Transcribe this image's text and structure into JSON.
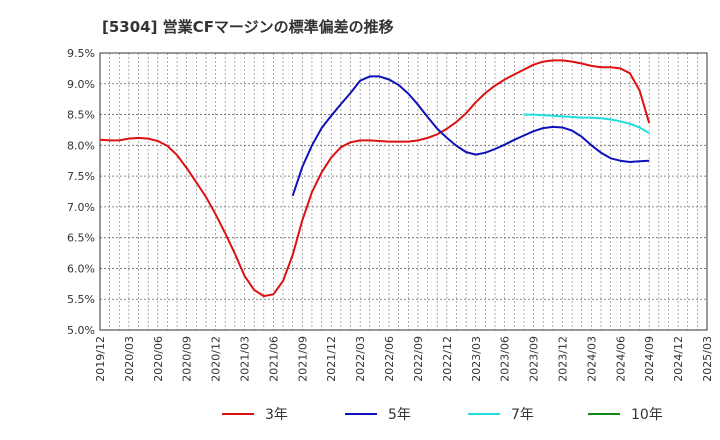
{
  "chart_data": {
    "type": "line",
    "title": "[5304]  営業CFマージンの標準偏差の推移",
    "xlabel": "",
    "ylabel": "",
    "ylim": [
      5.0,
      9.5
    ],
    "yticks": [
      5.0,
      5.5,
      6.0,
      6.5,
      7.0,
      7.5,
      8.0,
      8.5,
      9.0,
      9.5
    ],
    "ytick_labels": [
      "5.0%",
      "5.5%",
      "6.0%",
      "6.5%",
      "7.0%",
      "7.5%",
      "8.0%",
      "8.5%",
      "9.0%",
      "9.5%"
    ],
    "xticks": [
      "2019/12",
      "2020/03",
      "2020/06",
      "2020/09",
      "2020/12",
      "2021/03",
      "2021/06",
      "2021/09",
      "2021/12",
      "2022/03",
      "2022/06",
      "2022/09",
      "2022/12",
      "2023/03",
      "2023/06",
      "2023/09",
      "2023/12",
      "2024/03",
      "2024/06",
      "2024/09",
      "2024/12",
      "2025/03"
    ],
    "grid": true,
    "legend_position": "bottom",
    "series": [
      {
        "name": "3年",
        "color": "#dd1111",
        "x": [
          "2019/12",
          "2020/01",
          "2020/02",
          "2020/03",
          "2020/04",
          "2020/05",
          "2020/06",
          "2020/07",
          "2020/08",
          "2020/09",
          "2020/10",
          "2020/11",
          "2020/12",
          "2021/01",
          "2021/02",
          "2021/03",
          "2021/04",
          "2021/05",
          "2021/06",
          "2021/07",
          "2021/08",
          "2021/09",
          "2021/10",
          "2021/11",
          "2021/12",
          "2022/01",
          "2022/02",
          "2022/03",
          "2022/04",
          "2022/05",
          "2022/06",
          "2022/07",
          "2022/08",
          "2022/09",
          "2022/10",
          "2022/11",
          "2022/12",
          "2023/01",
          "2023/02",
          "2023/03",
          "2023/04",
          "2023/05",
          "2023/06",
          "2023/07",
          "2023/08",
          "2023/09",
          "2023/10",
          "2023/11",
          "2023/12",
          "2024/01",
          "2024/02",
          "2024/03",
          "2024/04",
          "2024/05",
          "2024/06",
          "2024/07",
          "2024/08",
          "2024/09"
        ],
        "values": [
          8.09,
          8.08,
          8.08,
          8.11,
          8.12,
          8.11,
          8.07,
          7.99,
          7.84,
          7.63,
          7.4,
          7.16,
          6.88,
          6.57,
          6.24,
          5.88,
          5.65,
          5.55,
          5.58,
          5.8,
          6.22,
          6.78,
          7.24,
          7.56,
          7.8,
          7.97,
          8.05,
          8.08,
          8.08,
          8.07,
          8.06,
          8.06,
          8.06,
          8.08,
          8.12,
          8.18,
          8.27,
          8.38,
          8.52,
          8.7,
          8.85,
          8.97,
          9.07,
          9.15,
          9.23,
          9.31,
          9.36,
          9.38,
          9.38,
          9.36,
          9.33,
          9.29,
          9.27,
          9.27,
          9.25,
          9.17,
          8.89,
          8.36
        ]
      },
      {
        "name": "5年",
        "color": "#1111bb",
        "x": [
          "2021/08",
          "2021/09",
          "2021/10",
          "2021/11",
          "2021/12",
          "2022/01",
          "2022/02",
          "2022/03",
          "2022/04",
          "2022/05",
          "2022/06",
          "2022/07",
          "2022/08",
          "2022/09",
          "2022/10",
          "2022/11",
          "2022/12",
          "2023/01",
          "2023/02",
          "2023/03",
          "2023/04",
          "2023/05",
          "2023/06",
          "2023/07",
          "2023/08",
          "2023/09",
          "2023/10",
          "2023/11",
          "2023/12",
          "2024/01",
          "2024/02",
          "2024/03",
          "2024/04",
          "2024/05",
          "2024/06",
          "2024/07",
          "2024/08",
          "2024/09"
        ],
        "values": [
          7.18,
          7.65,
          8.0,
          8.28,
          8.48,
          8.67,
          8.85,
          9.05,
          9.12,
          9.12,
          9.07,
          8.98,
          8.84,
          8.66,
          8.46,
          8.27,
          8.12,
          7.99,
          7.89,
          7.85,
          7.88,
          7.94,
          8.01,
          8.09,
          8.16,
          8.23,
          8.28,
          8.3,
          8.29,
          8.24,
          8.14,
          8.0,
          7.88,
          7.79,
          7.75,
          7.73,
          7.74,
          7.75
        ]
      },
      {
        "name": "7年",
        "color": "#22dddd",
        "x": [
          "2023/08",
          "2023/09",
          "2023/10",
          "2023/11",
          "2023/12",
          "2024/01",
          "2024/02",
          "2024/03",
          "2024/04",
          "2024/05",
          "2024/06",
          "2024/07",
          "2024/08",
          "2024/09"
        ],
        "values": [
          8.5,
          8.5,
          8.49,
          8.48,
          8.47,
          8.46,
          8.45,
          8.45,
          8.44,
          8.42,
          8.39,
          8.35,
          8.29,
          8.2
        ]
      },
      {
        "name": "10年",
        "color": "#118811",
        "x": [],
        "values": []
      }
    ]
  }
}
